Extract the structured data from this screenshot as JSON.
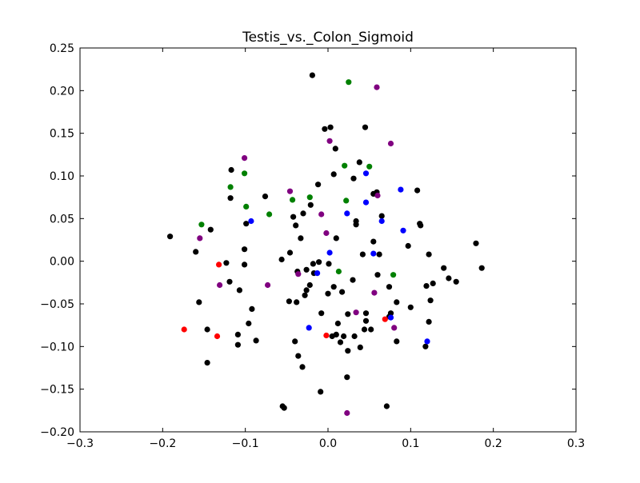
{
  "chart_data": {
    "type": "scatter",
    "title": "Testis_vs._Colon_Sigmoid",
    "xlabel": "",
    "ylabel": "",
    "xlim": [
      -0.3,
      0.3
    ],
    "ylim": [
      -0.2,
      0.25
    ],
    "xticks": [
      -0.3,
      -0.2,
      -0.1,
      0.0,
      0.1,
      0.2,
      0.3
    ],
    "xtick_labels": [
      "−0.3",
      "−0.2",
      "−0.1",
      "0.0",
      "0.1",
      "0.2",
      "0.3"
    ],
    "yticks": [
      -0.2,
      -0.15,
      -0.1,
      -0.05,
      0.0,
      0.05,
      0.1,
      0.15,
      0.2,
      0.25
    ],
    "ytick_labels": [
      "−0.20",
      "−0.15",
      "−0.10",
      "−0.05",
      "0.00",
      "0.05",
      "0.10",
      "0.15",
      "0.20",
      "0.25"
    ],
    "grid": false,
    "series": [
      {
        "color": "#000000",
        "points": [
          [
            -0.019,
            0.218
          ],
          [
            -0.004,
            0.155
          ],
          [
            0.003,
            0.157
          ],
          [
            0.045,
            0.157
          ],
          [
            0.009,
            0.132
          ],
          [
            0.038,
            0.116
          ],
          [
            -0.117,
            0.107
          ],
          [
            0.007,
            0.102
          ],
          [
            0.031,
            0.097
          ],
          [
            -0.012,
            0.09
          ],
          [
            0.108,
            0.083
          ],
          [
            -0.076,
            0.076
          ],
          [
            -0.118,
            0.074
          ],
          [
            0.059,
            0.081
          ],
          [
            0.055,
            0.079
          ],
          [
            -0.021,
            0.066
          ],
          [
            -0.03,
            0.056
          ],
          [
            -0.042,
            0.052
          ],
          [
            0.065,
            0.053
          ],
          [
            -0.039,
            0.042
          ],
          [
            -0.099,
            0.044
          ],
          [
            0.034,
            0.047
          ],
          [
            0.034,
            0.043
          ],
          [
            0.111,
            0.044
          ],
          [
            0.112,
            0.042
          ],
          [
            -0.191,
            0.029
          ],
          [
            -0.142,
            0.037
          ],
          [
            -0.033,
            0.027
          ],
          [
            0.01,
            0.027
          ],
          [
            0.055,
            0.023
          ],
          [
            0.097,
            0.018
          ],
          [
            0.179,
            0.021
          ],
          [
            -0.101,
            0.014
          ],
          [
            -0.046,
            0.01
          ],
          [
            -0.16,
            0.011
          ],
          [
            0.042,
            0.008
          ],
          [
            0.062,
            0.008
          ],
          [
            0.122,
            0.008
          ],
          [
            -0.056,
            0.002
          ],
          [
            -0.123,
            -0.002
          ],
          [
            -0.101,
            -0.004
          ],
          [
            -0.018,
            -0.003
          ],
          [
            -0.011,
            -0.001
          ],
          [
            0.001,
            -0.003
          ],
          [
            0.186,
            -0.008
          ],
          [
            0.14,
            -0.008
          ],
          [
            -0.026,
            -0.01
          ],
          [
            -0.037,
            -0.012
          ],
          [
            -0.017,
            -0.014
          ],
          [
            0.06,
            -0.016
          ],
          [
            0.146,
            -0.02
          ],
          [
            0.155,
            -0.024
          ],
          [
            0.03,
            -0.022
          ],
          [
            -0.119,
            -0.024
          ],
          [
            0.127,
            -0.026
          ],
          [
            0.119,
            -0.029
          ],
          [
            0.074,
            -0.03
          ],
          [
            -0.022,
            -0.028
          ],
          [
            0.007,
            -0.03
          ],
          [
            -0.026,
            -0.034
          ],
          [
            -0.107,
            -0.034
          ],
          [
            0.017,
            -0.036
          ],
          [
            0.0,
            -0.038
          ],
          [
            -0.028,
            -0.04
          ],
          [
            -0.156,
            -0.048
          ],
          [
            -0.047,
            -0.047
          ],
          [
            -0.038,
            -0.048
          ],
          [
            0.083,
            -0.048
          ],
          [
            0.1,
            -0.054
          ],
          [
            0.124,
            -0.046
          ],
          [
            -0.092,
            -0.056
          ],
          [
            0.046,
            -0.061
          ],
          [
            0.076,
            -0.061
          ],
          [
            0.074,
            -0.065
          ],
          [
            -0.008,
            -0.061
          ],
          [
            0.024,
            -0.062
          ],
          [
            0.046,
            -0.07
          ],
          [
            0.122,
            -0.071
          ],
          [
            -0.096,
            -0.073
          ],
          [
            0.012,
            -0.073
          ],
          [
            0.044,
            -0.08
          ],
          [
            -0.146,
            -0.08
          ],
          [
            0.052,
            -0.08
          ],
          [
            -0.109,
            -0.086
          ],
          [
            0.005,
            -0.088
          ],
          [
            0.01,
            -0.086
          ],
          [
            0.019,
            -0.088
          ],
          [
            0.032,
            -0.088
          ],
          [
            -0.087,
            -0.093
          ],
          [
            -0.04,
            -0.094
          ],
          [
            0.015,
            -0.095
          ],
          [
            0.083,
            -0.094
          ],
          [
            -0.109,
            -0.098
          ],
          [
            0.039,
            -0.101
          ],
          [
            0.118,
            -0.1
          ],
          [
            0.024,
            -0.105
          ],
          [
            -0.036,
            -0.111
          ],
          [
            -0.146,
            -0.119
          ],
          [
            -0.031,
            -0.124
          ],
          [
            0.023,
            -0.136
          ],
          [
            -0.009,
            -0.153
          ],
          [
            -0.055,
            -0.17
          ],
          [
            -0.053,
            -0.172
          ],
          [
            0.071,
            -0.17
          ]
        ]
      },
      {
        "color": "#008000",
        "points": [
          [
            0.025,
            0.21
          ],
          [
            0.02,
            0.112
          ],
          [
            0.05,
            0.111
          ],
          [
            -0.101,
            0.103
          ],
          [
            -0.118,
            0.087
          ],
          [
            -0.022,
            0.075
          ],
          [
            -0.043,
            0.072
          ],
          [
            0.022,
            0.071
          ],
          [
            -0.099,
            0.064
          ],
          [
            -0.071,
            0.055
          ],
          [
            -0.153,
            0.043
          ],
          [
            0.013,
            -0.012
          ],
          [
            0.079,
            -0.016
          ]
        ]
      },
      {
        "color": "#800080",
        "points": [
          [
            0.059,
            0.204
          ],
          [
            0.076,
            0.138
          ],
          [
            0.002,
            0.141
          ],
          [
            -0.101,
            0.121
          ],
          [
            0.06,
            0.077
          ],
          [
            -0.046,
            0.082
          ],
          [
            -0.008,
            0.055
          ],
          [
            -0.002,
            0.033
          ],
          [
            -0.155,
            0.027
          ],
          [
            -0.036,
            -0.015
          ],
          [
            -0.131,
            -0.028
          ],
          [
            -0.073,
            -0.028
          ],
          [
            0.056,
            -0.037
          ],
          [
            0.034,
            -0.06
          ],
          [
            0.08,
            -0.078
          ],
          [
            0.023,
            -0.178
          ]
        ]
      },
      {
        "color": "#0000ff",
        "points": [
          [
            0.046,
            0.103
          ],
          [
            0.088,
            0.084
          ],
          [
            0.046,
            0.069
          ],
          [
            0.023,
            0.056
          ],
          [
            0.065,
            0.047
          ],
          [
            -0.093,
            0.047
          ],
          [
            0.091,
            0.036
          ],
          [
            0.002,
            0.01
          ],
          [
            0.055,
            0.009
          ],
          [
            -0.013,
            -0.014
          ],
          [
            0.076,
            -0.066
          ],
          [
            -0.023,
            -0.078
          ],
          [
            0.12,
            -0.094
          ]
        ]
      },
      {
        "color": "#ff0000",
        "points": [
          [
            -0.132,
            -0.004
          ],
          [
            -0.174,
            -0.08
          ],
          [
            -0.134,
            -0.088
          ],
          [
            -0.002,
            -0.087
          ],
          [
            0.069,
            -0.068
          ]
        ]
      }
    ]
  }
}
